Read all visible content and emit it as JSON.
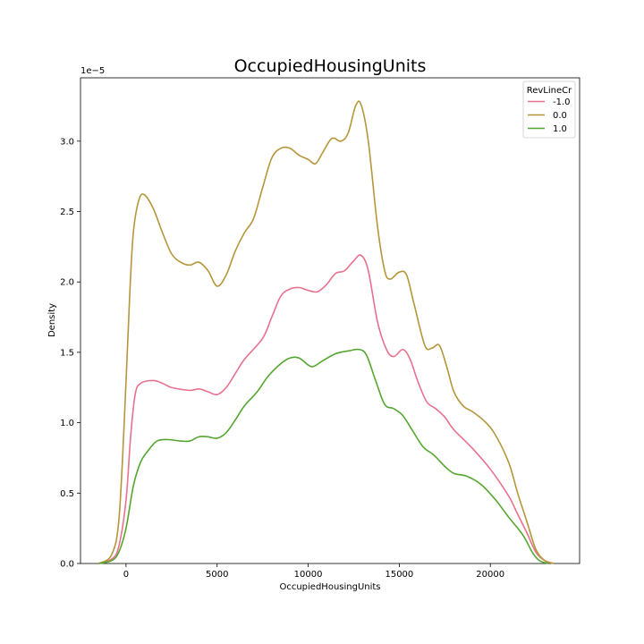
{
  "chart_data": {
    "type": "line",
    "title": "OccupiedHousingUnits",
    "xlabel": "OccupiedHousingUnits",
    "ylabel": "Density",
    "y_offset_label": "1e−5",
    "xlim": [
      -2500,
      24900
    ],
    "ylim": [
      0,
      3.45
    ],
    "x_ticks": [
      0,
      5000,
      10000,
      15000,
      20000
    ],
    "x_tick_labels": [
      "0",
      "5000",
      "10000",
      "15000",
      "20000"
    ],
    "y_ticks": [
      0.0,
      0.5,
      1.0,
      1.5,
      2.0,
      2.5,
      3.0
    ],
    "y_tick_labels": [
      "0.0",
      "0.5",
      "1.0",
      "1.5",
      "2.0",
      "2.5",
      "3.0"
    ],
    "grid": false,
    "legend": {
      "title": "RevLineCr",
      "placement": "top-right"
    },
    "series": [
      {
        "name": "-1.0",
        "color": "#e8718d",
        "points": [
          [
            -1500,
            0.0
          ],
          [
            -800,
            0.03
          ],
          [
            -400,
            0.12
          ],
          [
            0,
            0.45
          ],
          [
            250,
            0.9
          ],
          [
            500,
            1.2
          ],
          [
            800,
            1.28
          ],
          [
            1500,
            1.3
          ],
          [
            2000,
            1.28
          ],
          [
            2500,
            1.25
          ],
          [
            3500,
            1.23
          ],
          [
            4000,
            1.24
          ],
          [
            4500,
            1.22
          ],
          [
            5000,
            1.2
          ],
          [
            5500,
            1.25
          ],
          [
            6000,
            1.35
          ],
          [
            6500,
            1.45
          ],
          [
            7500,
            1.6
          ],
          [
            8000,
            1.75
          ],
          [
            8500,
            1.9
          ],
          [
            9000,
            1.95
          ],
          [
            9500,
            1.96
          ],
          [
            10000,
            1.94
          ],
          [
            10500,
            1.93
          ],
          [
            11000,
            1.98
          ],
          [
            11500,
            2.06
          ],
          [
            12000,
            2.08
          ],
          [
            12500,
            2.15
          ],
          [
            12900,
            2.19
          ],
          [
            13300,
            2.08
          ],
          [
            13800,
            1.72
          ],
          [
            14300,
            1.52
          ],
          [
            14700,
            1.47
          ],
          [
            15200,
            1.52
          ],
          [
            15600,
            1.45
          ],
          [
            16000,
            1.3
          ],
          [
            16500,
            1.15
          ],
          [
            17000,
            1.1
          ],
          [
            17500,
            1.04
          ],
          [
            18000,
            0.95
          ],
          [
            19000,
            0.82
          ],
          [
            20000,
            0.67
          ],
          [
            21000,
            0.48
          ],
          [
            21500,
            0.35
          ],
          [
            22000,
            0.22
          ],
          [
            22500,
            0.08
          ],
          [
            23000,
            0.02
          ],
          [
            23500,
            0.0
          ]
        ]
      },
      {
        "name": "0.0",
        "color": "#b5963a",
        "points": [
          [
            -1500,
            0.0
          ],
          [
            -800,
            0.06
          ],
          [
            -400,
            0.3
          ],
          [
            -100,
            1.0
          ],
          [
            200,
            1.9
          ],
          [
            400,
            2.35
          ],
          [
            700,
            2.58
          ],
          [
            1000,
            2.62
          ],
          [
            1500,
            2.52
          ],
          [
            2000,
            2.35
          ],
          [
            2500,
            2.2
          ],
          [
            3000,
            2.14
          ],
          [
            3500,
            2.12
          ],
          [
            4000,
            2.14
          ],
          [
            4500,
            2.08
          ],
          [
            5000,
            1.97
          ],
          [
            5500,
            2.05
          ],
          [
            6000,
            2.22
          ],
          [
            6500,
            2.35
          ],
          [
            7000,
            2.45
          ],
          [
            7500,
            2.67
          ],
          [
            8000,
            2.88
          ],
          [
            8500,
            2.95
          ],
          [
            9000,
            2.95
          ],
          [
            9500,
            2.9
          ],
          [
            10000,
            2.87
          ],
          [
            10400,
            2.84
          ],
          [
            10800,
            2.92
          ],
          [
            11300,
            3.02
          ],
          [
            11800,
            3.0
          ],
          [
            12200,
            3.06
          ],
          [
            12600,
            3.25
          ],
          [
            12900,
            3.26
          ],
          [
            13300,
            3.0
          ],
          [
            13800,
            2.4
          ],
          [
            14200,
            2.08
          ],
          [
            14500,
            2.02
          ],
          [
            15000,
            2.07
          ],
          [
            15400,
            2.05
          ],
          [
            15800,
            1.85
          ],
          [
            16400,
            1.55
          ],
          [
            16800,
            1.53
          ],
          [
            17200,
            1.55
          ],
          [
            17600,
            1.4
          ],
          [
            18000,
            1.22
          ],
          [
            18500,
            1.12
          ],
          [
            19000,
            1.08
          ],
          [
            19600,
            1.02
          ],
          [
            20200,
            0.93
          ],
          [
            21000,
            0.72
          ],
          [
            21500,
            0.5
          ],
          [
            22000,
            0.3
          ],
          [
            22500,
            0.1
          ],
          [
            23000,
            0.02
          ],
          [
            23500,
            0.0
          ]
        ]
      },
      {
        "name": "1.0",
        "color": "#55a630",
        "points": [
          [
            -1500,
            0.0
          ],
          [
            -800,
            0.02
          ],
          [
            -400,
            0.08
          ],
          [
            0,
            0.25
          ],
          [
            400,
            0.55
          ],
          [
            800,
            0.72
          ],
          [
            1200,
            0.8
          ],
          [
            1700,
            0.87
          ],
          [
            2300,
            0.88
          ],
          [
            3000,
            0.87
          ],
          [
            3500,
            0.87
          ],
          [
            4000,
            0.9
          ],
          [
            4500,
            0.9
          ],
          [
            5000,
            0.89
          ],
          [
            5500,
            0.93
          ],
          [
            6000,
            1.02
          ],
          [
            6500,
            1.12
          ],
          [
            7200,
            1.22
          ],
          [
            7800,
            1.33
          ],
          [
            8500,
            1.42
          ],
          [
            9000,
            1.46
          ],
          [
            9500,
            1.46
          ],
          [
            10000,
            1.41
          ],
          [
            10300,
            1.4
          ],
          [
            10800,
            1.44
          ],
          [
            11500,
            1.49
          ],
          [
            12200,
            1.51
          ],
          [
            12800,
            1.52
          ],
          [
            13200,
            1.48
          ],
          [
            13700,
            1.3
          ],
          [
            14200,
            1.13
          ],
          [
            14700,
            1.1
          ],
          [
            15200,
            1.05
          ],
          [
            15700,
            0.95
          ],
          [
            16300,
            0.83
          ],
          [
            16900,
            0.77
          ],
          [
            17500,
            0.69
          ],
          [
            18000,
            0.64
          ],
          [
            18700,
            0.62
          ],
          [
            19500,
            0.56
          ],
          [
            20300,
            0.45
          ],
          [
            21000,
            0.33
          ],
          [
            21800,
            0.2
          ],
          [
            22300,
            0.08
          ],
          [
            22700,
            0.02
          ],
          [
            23200,
            0.0
          ]
        ]
      }
    ]
  }
}
